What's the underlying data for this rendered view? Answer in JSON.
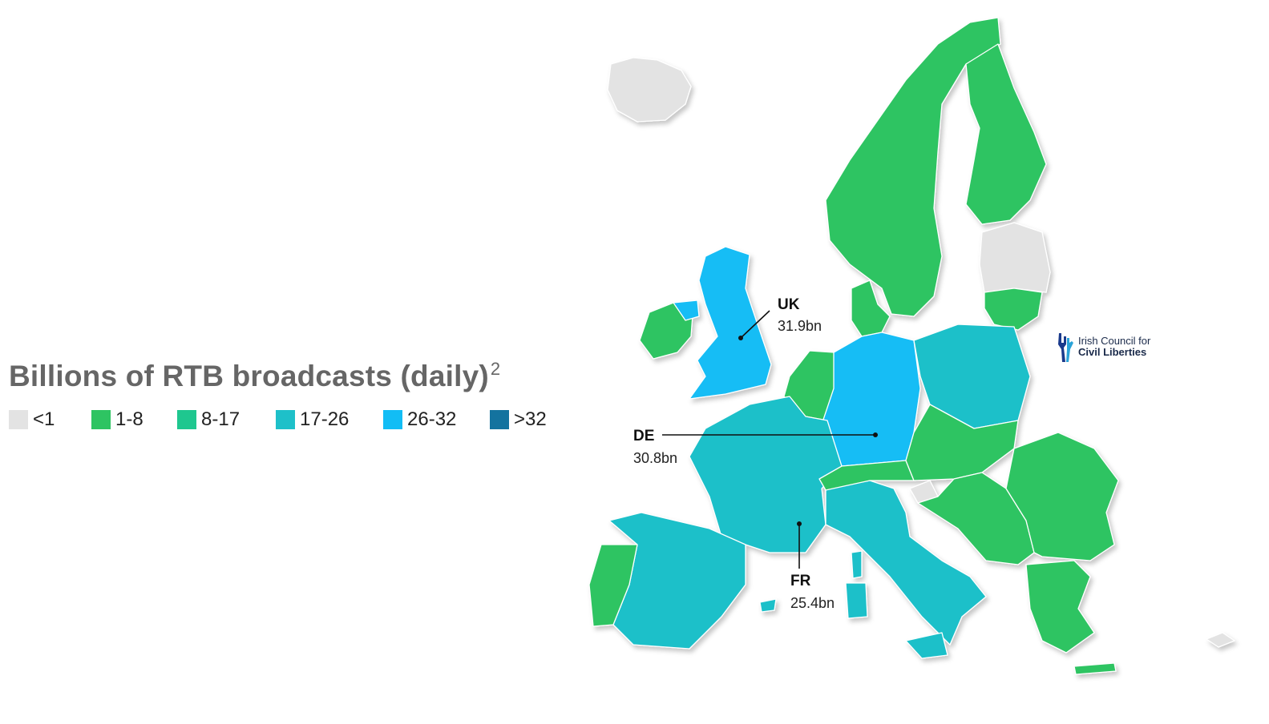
{
  "title": "Billions of RTB broadcasts (daily)",
  "title_footnote": "2",
  "legend": [
    {
      "label": "<1",
      "color": "#e3e3e3"
    },
    {
      "label": "1-8",
      "color": "#2ec462"
    },
    {
      "label": "8-17",
      "color": "#1fc78f"
    },
    {
      "label": "17-26",
      "color": "#1ec0c9"
    },
    {
      "label": "26-32",
      "color": "#12bdf5"
    },
    {
      "label": ">32",
      "color": "#14739f"
    }
  ],
  "callouts": {
    "uk": {
      "code": "UK",
      "value": "31.9bn"
    },
    "de": {
      "code": "DE",
      "value": "30.8bn"
    },
    "fr": {
      "code": "FR",
      "value": "25.4bn"
    }
  },
  "logo": {
    "line1": "Irish Council for",
    "line2": "Civil Liberties",
    "icon": "hands-icon",
    "color": "#1a3a8c"
  },
  "regions": [
    {
      "name": "iceland",
      "category": "<1"
    },
    {
      "name": "scandinavia",
      "category": "1-8"
    },
    {
      "name": "finland",
      "category": "1-8"
    },
    {
      "name": "baltics",
      "category": "<1"
    },
    {
      "name": "lithuania",
      "category": "1-8"
    },
    {
      "name": "ireland",
      "category": "1-8"
    },
    {
      "name": "northern-ireland",
      "category": "26-32"
    },
    {
      "name": "uk",
      "category": "26-32"
    },
    {
      "name": "denmark",
      "category": "1-8"
    },
    {
      "name": "benelux",
      "category": "1-8"
    },
    {
      "name": "germany",
      "category": "26-32"
    },
    {
      "name": "poland",
      "category": "17-26"
    },
    {
      "name": "france",
      "category": "17-26"
    },
    {
      "name": "spain",
      "category": "17-26"
    },
    {
      "name": "portugal",
      "category": "1-8"
    },
    {
      "name": "italy",
      "category": "17-26"
    },
    {
      "name": "alps",
      "category": "1-8"
    },
    {
      "name": "central-europe",
      "category": "1-8"
    },
    {
      "name": "slovenia",
      "category": "<1"
    },
    {
      "name": "balkans",
      "category": "1-8"
    },
    {
      "name": "romania-bulgaria",
      "category": "1-8"
    },
    {
      "name": "greece",
      "category": "1-8"
    },
    {
      "name": "corsica",
      "category": "17-26"
    },
    {
      "name": "sardinia",
      "category": "17-26"
    },
    {
      "name": "sicily",
      "category": "17-26"
    },
    {
      "name": "mallorca",
      "category": "17-26"
    },
    {
      "name": "crete",
      "category": "1-8"
    },
    {
      "name": "cyprus",
      "category": "<1"
    }
  ]
}
